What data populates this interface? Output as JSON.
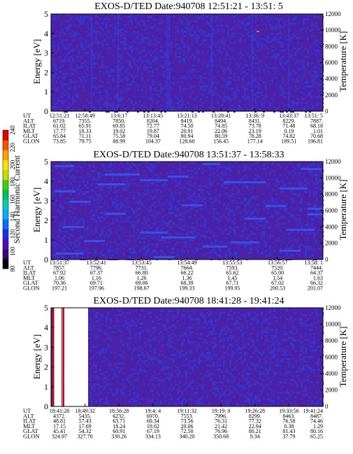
{
  "colorbar": {
    "label": "Second Harmonic Current",
    "ticks": [
      "80",
      "100",
      "120",
      "140",
      "160",
      "180",
      "200",
      "220",
      "240"
    ]
  },
  "panels": [
    {
      "title": "EXOS-D/TED   Date:940708  12:51:21 - 13:51: 5",
      "ylabel": "Energy [eV]",
      "y2label": "Temperature [K]",
      "yticks": [
        "0",
        "1",
        "2",
        "3",
        "4",
        "5"
      ],
      "y2ticks": [
        "0",
        "2000",
        "4000",
        "6000",
        "8000",
        "10000",
        "12000"
      ],
      "rows": [
        {
          "label": "UT",
          "values": [
            "12:51:21",
            "12:58:49",
            "13:6:17",
            "13:13:45",
            "13:21:13",
            "13:28:41",
            "13:36: 9",
            "13:43:37",
            "13:51: 5"
          ]
        },
        {
          "label": "ALT",
          "values": [
            "6719.",
            "7355.",
            "7850.",
            "8204.",
            "8419.",
            "8494.",
            "8431.",
            "8229.",
            "7887."
          ]
        },
        {
          "label": "ILAT",
          "values": [
            "61.02",
            "65.91",
            "69.85",
            "72.77",
            "74.50",
            "74.85",
            "73.78",
            "71.48",
            "68.18"
          ]
        },
        {
          "label": "MLT",
          "values": [
            "17.77",
            "18.33",
            "19.02",
            "19.87",
            "20.91",
            "22.06",
            "23.19",
            "0.19",
            "1.01"
          ]
        },
        {
          "label": "GLAT",
          "values": [
            "65.84",
            "71.11",
            "75.58",
            "79.04",
            "80.94",
            "80.59",
            "78.28",
            "74.82",
            "70.68"
          ]
        },
        {
          "label": "GLON",
          "values": [
            "73.85",
            "79.75",
            "88.99",
            "104.37",
            "128.60",
            "156.45",
            "177.14",
            "189.51",
            "196.81"
          ]
        }
      ]
    },
    {
      "title": "EXOS-D/TED   Date:940708  13:51:37 - 13:58:33",
      "ylabel": "Energy [eV]",
      "y2label": "Temperature [K]",
      "yticks": [
        "0",
        "1",
        "2",
        "3",
        "4",
        "5"
      ],
      "y2ticks": [
        "0",
        "2000",
        "4000",
        "6000",
        "8000",
        "10000",
        "12000"
      ],
      "rows": [
        {
          "label": "UT",
          "values": [
            "13:51:37",
            "13:52:41",
            "13:53:45",
            "13:54:49",
            "13:55:53",
            "13:56:57",
            "13:58: 1"
          ]
        },
        {
          "label": "ALT",
          "values": [
            "7857.",
            "7796.",
            "7731.",
            "7664.",
            "7593.",
            "7520.",
            "7444."
          ]
        },
        {
          "label": "ILAT",
          "values": [
            "67.92",
            "67.37",
            "66.80",
            "66.22",
            "65.62",
            "65.00",
            "64.37"
          ]
        },
        {
          "label": "MLT",
          "values": [
            "1.06",
            "1.16",
            "1.26",
            "1.36",
            "1.45",
            "1.54",
            "1.63"
          ]
        },
        {
          "label": "GLAT",
          "values": [
            "70.36",
            "69.71",
            "69.06",
            "68.39",
            "67.71",
            "67.02",
            "66.32"
          ]
        },
        {
          "label": "GLON",
          "values": [
            "197.21",
            "197.96",
            "198.67",
            "199.33",
            "199.95",
            "200.53",
            "201.07"
          ]
        }
      ]
    },
    {
      "title": "EXOS-D/TED   Date:940708  18:41:28 - 19:41:24",
      "ylabel": "Energy [eV]",
      "y2label": "Temperature [K]",
      "yticks": [
        "0",
        "1",
        "2",
        "3",
        "4",
        "5"
      ],
      "y2ticks": [
        "0",
        "2000",
        "4000",
        "6000",
        "8000",
        "10000",
        "12000"
      ],
      "rows": [
        {
          "label": "UT",
          "values": [
            "18:41:28",
            "18:49:32",
            "18:56:28",
            "19:4: 4",
            "19:11:32",
            "19:19: 0",
            "19:26:28",
            "19:33:56",
            "19:41:24"
          ]
        },
        {
          "label": "ALT",
          "values": [
            "4372.",
            "5435.",
            "6232.",
            "6970.",
            "7553.",
            "7996.",
            "8299.",
            "8463.",
            "8487."
          ]
        },
        {
          "label": "ILAT",
          "values": [
            "48.81",
            "57.43",
            "63.71",
            "69.34",
            "73.56",
            "76.31",
            "77.32",
            "76.58",
            "74.46"
          ]
        },
        {
          "label": "MLT",
          "values": [
            "17.15",
            "17.69",
            "18.24",
            "19.02",
            "20.06",
            "21.42",
            "22.94",
            "0.38",
            "1.29"
          ]
        },
        {
          "label": "GLAT",
          "values": [
            "45.41",
            "54.32",
            "60.91",
            "67.19",
            "72.50",
            "76.96",
            "80.21",
            "81.43",
            "80.16"
          ]
        },
        {
          "label": "GLON",
          "values": [
            "324.97",
            "327.70",
            "330.26",
            "334.13",
            "340.20",
            "350.68",
            "9.34",
            "37.79",
            "65.25"
          ]
        }
      ]
    }
  ],
  "chart_data": [
    {
      "type": "heatmap",
      "title": "EXOS-D/TED   Date:940708  12:51:21 - 13:51: 5",
      "ylabel": "Energy [eV]",
      "y2label": "Temperature [K]",
      "ylim": [
        0,
        5
      ],
      "y2lim": [
        0,
        12000
      ],
      "x": [
        "12:51:21",
        "12:58:49",
        "13:6:17",
        "13:13:45",
        "13:21:13",
        "13:28:41",
        "13:36: 9",
        "13:43:37",
        "13:51: 5"
      ],
      "colorbar": {
        "label": "Second Harmonic Current",
        "range": [
          80,
          240
        ]
      },
      "values_note_baseline": 125
    },
    {
      "type": "heatmap",
      "title": "EXOS-D/TED   Date:940708  13:51:37 - 13:58:33",
      "ylabel": "Energy [eV]",
      "y2label": "Temperature [K]",
      "ylim": [
        0,
        5
      ],
      "y2lim": [
        0,
        12000
      ],
      "x": [
        "13:51:37",
        "13:52:41",
        "13:53:45",
        "13:54:49",
        "13:55:53",
        "13:56:57",
        "13:58: 1"
      ],
      "colorbar": {
        "label": "Second Harmonic Current",
        "range": [
          80,
          240
        ]
      },
      "values_note_baseline": 125
    },
    {
      "type": "heatmap",
      "title": "EXOS-D/TED   Date:940708  18:41:28 - 19:41:24",
      "ylabel": "Energy [eV]",
      "y2label": "Temperature [K]",
      "ylim": [
        0,
        5
      ],
      "y2lim": [
        0,
        12000
      ],
      "x": [
        "18:41:28",
        "18:49:32",
        "18:56:28",
        "19:4: 4",
        "19:11:32",
        "19:19: 0",
        "19:26:28",
        "19:33:56",
        "19:41:24"
      ],
      "colorbar": {
        "label": "Second Harmonic Current",
        "range": [
          80,
          240
        ]
      },
      "values_note_baseline": 125
    }
  ]
}
